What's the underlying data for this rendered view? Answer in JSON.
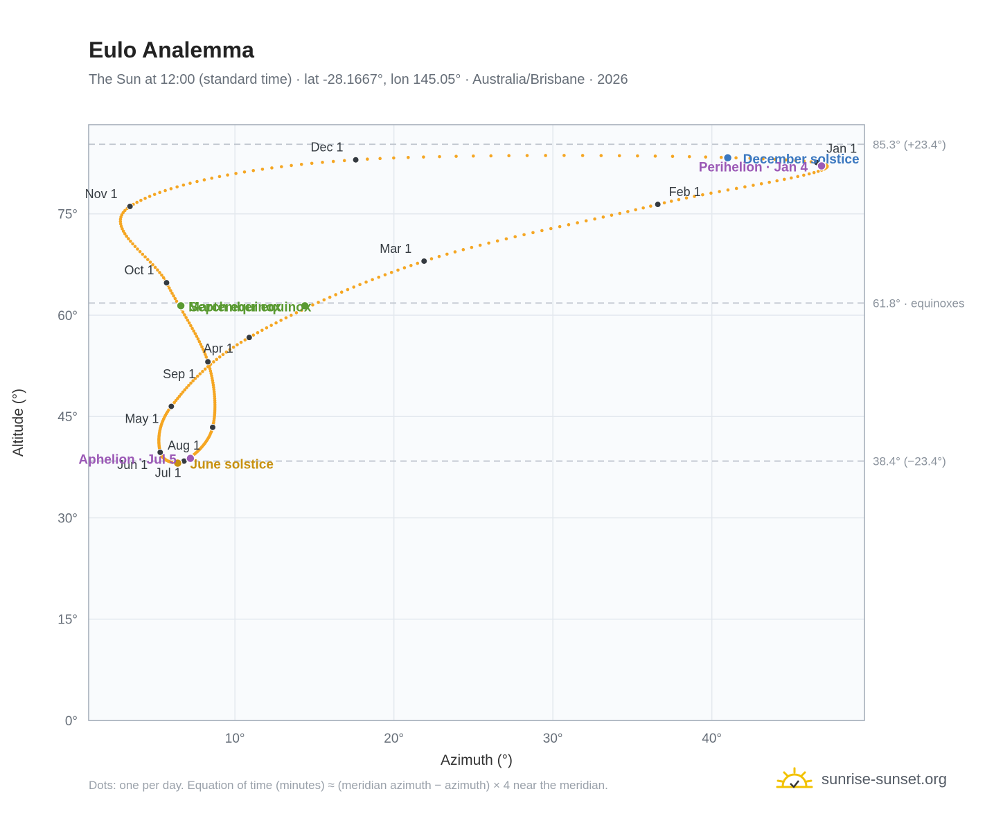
{
  "header": {
    "title": "Eulo Analemma",
    "subtitle": "The Sun at 12:00 (standard time) · lat -28.1667°, lon 145.05° · Australia/Brisbane · 2026"
  },
  "footer": {
    "note": "Dots: one per day. Equation of time (minutes) ≈ (meridian azimuth − azimuth) × 4 near the meridian.",
    "brand": "sunrise-sunset.org"
  },
  "colors": {
    "analemma": "#f5a623",
    "month_marker": "#343a40",
    "december_solstice": "#3b78c0",
    "june_solstice": "#c8910f",
    "equinox": "#5a9a32",
    "apsis": "#9b59b6",
    "reference_line": "#c0c6cf",
    "plot_background": "#f9fbfd",
    "grid": "#e3e8ee",
    "axis_frame": "#a0aab6"
  },
  "chart_data": {
    "type": "scatter",
    "title": "Eulo Analemma",
    "xlabel": "Azimuth (°)",
    "ylabel": "Altitude (°)",
    "xlim": [
      0.8,
      49.6
    ],
    "ylim": [
      0,
      88.2
    ],
    "x_ticks": [
      10,
      20,
      30,
      40
    ],
    "x_tick_labels": [
      "10°",
      "20°",
      "30°",
      "40°"
    ],
    "y_ticks": [
      0,
      15,
      30,
      45,
      60,
      75
    ],
    "y_tick_labels": [
      "0°",
      "15°",
      "30°",
      "45°",
      "60°",
      "75°"
    ],
    "grid": true,
    "series": [
      {
        "type": "daily-path",
        "anchors": [
          {
            "x": 46.6,
            "y": 82.6
          },
          {
            "x": 36.6,
            "y": 76.4
          },
          {
            "x": 21.9,
            "y": 68.0
          },
          {
            "x": 10.9,
            "y": 56.7
          },
          {
            "x": 6.0,
            "y": 46.5
          },
          {
            "x": 5.3,
            "y": 39.7
          },
          {
            "x": 6.8,
            "y": 38.4
          },
          {
            "x": 8.6,
            "y": 43.4
          },
          {
            "x": 8.3,
            "y": 53.1
          },
          {
            "x": 5.7,
            "y": 64.8
          },
          {
            "x": 3.4,
            "y": 76.1
          },
          {
            "x": 17.6,
            "y": 83.0
          },
          {
            "x": 46.6,
            "y": 82.6
          }
        ]
      }
    ],
    "month_markers": [
      {
        "label": "Jan 1",
        "x": 46.6,
        "y": 82.6
      },
      {
        "label": "Feb 1",
        "x": 36.6,
        "y": 76.4
      },
      {
        "label": "Mar 1",
        "x": 21.9,
        "y": 68.0
      },
      {
        "label": "Apr 1",
        "x": 10.9,
        "y": 56.7
      },
      {
        "label": "May 1",
        "x": 6.0,
        "y": 46.5
      },
      {
        "label": "Jun 1",
        "x": 5.3,
        "y": 39.7
      },
      {
        "label": "Jul 1",
        "x": 6.8,
        "y": 38.4
      },
      {
        "label": "Aug 1",
        "x": 8.6,
        "y": 43.4
      },
      {
        "label": "Sep 1",
        "x": 8.3,
        "y": 53.1
      },
      {
        "label": "Oct 1",
        "x": 5.7,
        "y": 64.8
      },
      {
        "label": "Nov 1",
        "x": 3.4,
        "y": 76.1
      },
      {
        "label": "Dec 1",
        "x": 17.6,
        "y": 83.0
      }
    ],
    "events": [
      {
        "label": "December solstice",
        "x": 41.0,
        "y": 83.3,
        "color_key": "december_solstice"
      },
      {
        "label": "Perihelion · Jan 4",
        "x": 46.9,
        "y": 82.1,
        "color_key": "apsis"
      },
      {
        "label": "March equinox",
        "x": 14.4,
        "y": 61.4,
        "color_key": "equinox"
      },
      {
        "label": "September equinox",
        "x": 6.6,
        "y": 61.4,
        "color_key": "equinox"
      },
      {
        "label": "June solstice",
        "x": 6.4,
        "y": 38.1,
        "color_key": "june_solstice"
      },
      {
        "label": "Aphelion · Jul 5",
        "x": 7.2,
        "y": 38.8,
        "color_key": "apsis"
      }
    ],
    "reference_lines": [
      {
        "y": 85.3,
        "label": "85.3° (+23.4°)"
      },
      {
        "y": 61.8,
        "label": "61.8° · equinoxes"
      },
      {
        "y": 38.4,
        "label": "38.4° (−23.4°)"
      }
    ]
  }
}
